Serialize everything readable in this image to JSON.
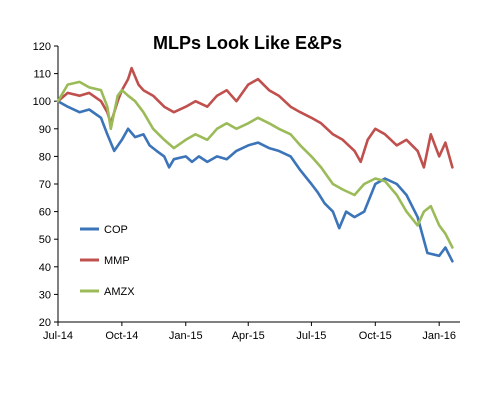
{
  "chart_data": {
    "type": "line",
    "title": "MLPs Look Like E&Ps",
    "xlabel": "",
    "ylabel": "",
    "ylim": [
      20,
      120
    ],
    "yticks": [
      20,
      30,
      40,
      50,
      60,
      70,
      80,
      90,
      100,
      110,
      120
    ],
    "xlim": [
      "2014-07-01",
      "2016-01-31"
    ],
    "xticks": [
      {
        "date": "2014-07-01",
        "label": "Jul-14"
      },
      {
        "date": "2014-10-01",
        "label": "Oct-14"
      },
      {
        "date": "2015-01-01",
        "label": "Jan-15"
      },
      {
        "date": "2015-04-01",
        "label": "Apr-15"
      },
      {
        "date": "2015-07-01",
        "label": "Jul-15"
      },
      {
        "date": "2015-10-01",
        "label": "Oct-15"
      },
      {
        "date": "2016-01-01",
        "label": "Jan-16"
      }
    ],
    "grid": false,
    "legend_placement": "left-bottom",
    "series": [
      {
        "name": "COP",
        "color": "#3b74b8",
        "points": [
          [
            "2014-07-01",
            100
          ],
          [
            "2014-07-15",
            98
          ],
          [
            "2014-08-01",
            96
          ],
          [
            "2014-08-15",
            97
          ],
          [
            "2014-09-01",
            94
          ],
          [
            "2014-09-10",
            88
          ],
          [
            "2014-09-20",
            82
          ],
          [
            "2014-10-01",
            86
          ],
          [
            "2014-10-10",
            90
          ],
          [
            "2014-10-20",
            87
          ],
          [
            "2014-11-01",
            88
          ],
          [
            "2014-11-10",
            84
          ],
          [
            "2014-11-20",
            82
          ],
          [
            "2014-12-01",
            80
          ],
          [
            "2014-12-08",
            76
          ],
          [
            "2014-12-15",
            79
          ],
          [
            "2015-01-01",
            80
          ],
          [
            "2015-01-10",
            78
          ],
          [
            "2015-01-20",
            80
          ],
          [
            "2015-02-01",
            78
          ],
          [
            "2015-02-15",
            80
          ],
          [
            "2015-03-01",
            79
          ],
          [
            "2015-03-15",
            82
          ],
          [
            "2015-04-01",
            84
          ],
          [
            "2015-04-15",
            85
          ],
          [
            "2015-05-01",
            83
          ],
          [
            "2015-05-15",
            82
          ],
          [
            "2015-06-01",
            80
          ],
          [
            "2015-06-15",
            75
          ],
          [
            "2015-07-01",
            70
          ],
          [
            "2015-07-10",
            67
          ],
          [
            "2015-07-20",
            63
          ],
          [
            "2015-08-01",
            60
          ],
          [
            "2015-08-10",
            54
          ],
          [
            "2015-08-20",
            60
          ],
          [
            "2015-09-01",
            58
          ],
          [
            "2015-09-15",
            60
          ],
          [
            "2015-10-01",
            70
          ],
          [
            "2015-10-15",
            72
          ],
          [
            "2015-11-01",
            70
          ],
          [
            "2015-11-15",
            66
          ],
          [
            "2015-12-01",
            58
          ],
          [
            "2015-12-15",
            45
          ],
          [
            "2016-01-01",
            44
          ],
          [
            "2016-01-10",
            47
          ],
          [
            "2016-01-20",
            42
          ]
        ]
      },
      {
        "name": "MMP",
        "color": "#c0504d",
        "points": [
          [
            "2014-07-01",
            100
          ],
          [
            "2014-07-15",
            103
          ],
          [
            "2014-08-01",
            102
          ],
          [
            "2014-08-15",
            103
          ],
          [
            "2014-09-01",
            100
          ],
          [
            "2014-09-10",
            96
          ],
          [
            "2014-09-15",
            92
          ],
          [
            "2014-09-25",
            100
          ],
          [
            "2014-10-01",
            104
          ],
          [
            "2014-10-10",
            108
          ],
          [
            "2014-10-15",
            112
          ],
          [
            "2014-10-25",
            106
          ],
          [
            "2014-11-01",
            104
          ],
          [
            "2014-11-15",
            102
          ],
          [
            "2014-12-01",
            98
          ],
          [
            "2014-12-15",
            96
          ],
          [
            "2015-01-01",
            98
          ],
          [
            "2015-01-15",
            100
          ],
          [
            "2015-02-01",
            98
          ],
          [
            "2015-02-15",
            102
          ],
          [
            "2015-03-01",
            104
          ],
          [
            "2015-03-15",
            100
          ],
          [
            "2015-04-01",
            106
          ],
          [
            "2015-04-15",
            108
          ],
          [
            "2015-05-01",
            104
          ],
          [
            "2015-05-15",
            102
          ],
          [
            "2015-06-01",
            98
          ],
          [
            "2015-06-15",
            96
          ],
          [
            "2015-07-01",
            94
          ],
          [
            "2015-07-15",
            92
          ],
          [
            "2015-08-01",
            88
          ],
          [
            "2015-08-15",
            86
          ],
          [
            "2015-09-01",
            82
          ],
          [
            "2015-09-10",
            78
          ],
          [
            "2015-09-20",
            86
          ],
          [
            "2015-10-01",
            90
          ],
          [
            "2015-10-15",
            88
          ],
          [
            "2015-11-01",
            84
          ],
          [
            "2015-11-15",
            86
          ],
          [
            "2015-12-01",
            82
          ],
          [
            "2015-12-10",
            76
          ],
          [
            "2015-12-20",
            88
          ],
          [
            "2016-01-01",
            80
          ],
          [
            "2016-01-10",
            85
          ],
          [
            "2016-01-20",
            76
          ]
        ]
      },
      {
        "name": "AMZX",
        "color": "#9bbb59",
        "points": [
          [
            "2014-07-01",
            100
          ],
          [
            "2014-07-15",
            106
          ],
          [
            "2014-08-01",
            107
          ],
          [
            "2014-08-15",
            105
          ],
          [
            "2014-09-01",
            104
          ],
          [
            "2014-09-10",
            98
          ],
          [
            "2014-09-15",
            90
          ],
          [
            "2014-09-25",
            102
          ],
          [
            "2014-10-01",
            104
          ],
          [
            "2014-10-10",
            102
          ],
          [
            "2014-10-20",
            100
          ],
          [
            "2014-11-01",
            96
          ],
          [
            "2014-11-15",
            90
          ],
          [
            "2014-12-01",
            86
          ],
          [
            "2014-12-15",
            83
          ],
          [
            "2015-01-01",
            86
          ],
          [
            "2015-01-15",
            88
          ],
          [
            "2015-02-01",
            86
          ],
          [
            "2015-02-15",
            90
          ],
          [
            "2015-03-01",
            92
          ],
          [
            "2015-03-15",
            90
          ],
          [
            "2015-04-01",
            92
          ],
          [
            "2015-04-15",
            94
          ],
          [
            "2015-05-01",
            92
          ],
          [
            "2015-05-15",
            90
          ],
          [
            "2015-06-01",
            88
          ],
          [
            "2015-06-15",
            84
          ],
          [
            "2015-07-01",
            80
          ],
          [
            "2015-07-15",
            76
          ],
          [
            "2015-08-01",
            70
          ],
          [
            "2015-08-15",
            68
          ],
          [
            "2015-09-01",
            66
          ],
          [
            "2015-09-15",
            70
          ],
          [
            "2015-10-01",
            72
          ],
          [
            "2015-10-15",
            71
          ],
          [
            "2015-11-01",
            66
          ],
          [
            "2015-11-15",
            60
          ],
          [
            "2015-12-01",
            55
          ],
          [
            "2015-12-10",
            60
          ],
          [
            "2015-12-20",
            62
          ],
          [
            "2016-01-01",
            55
          ],
          [
            "2016-01-10",
            52
          ],
          [
            "2016-01-20",
            47
          ]
        ]
      }
    ]
  }
}
